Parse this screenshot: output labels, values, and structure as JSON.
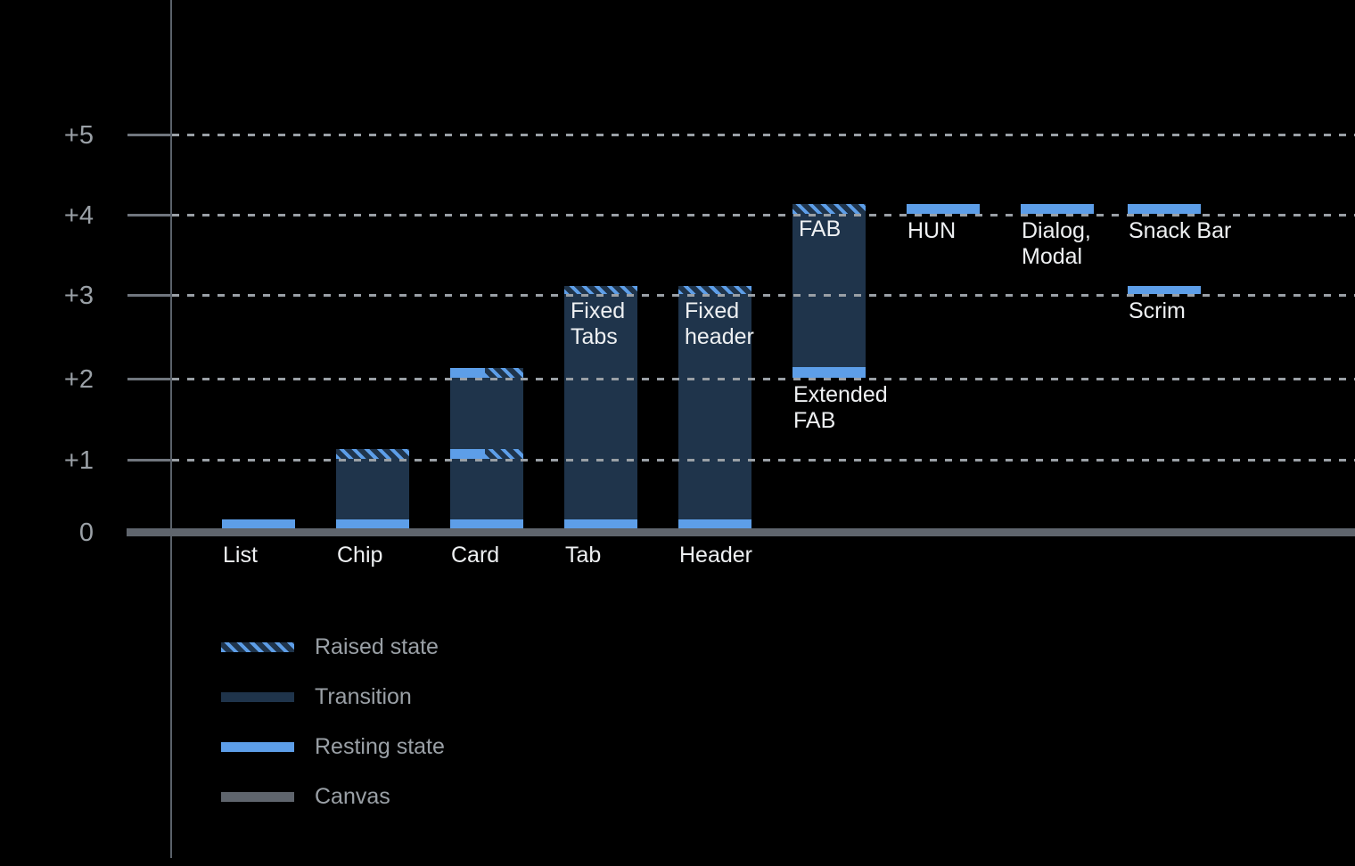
{
  "colors": {
    "background": "#000000",
    "resting_state": "#5d9ee8",
    "transition": "#1f344b",
    "canvas": "#5f656d",
    "gridline": "#9aa0a6",
    "axis_line": "#5a616a",
    "bar_label_text": "#eef0f2",
    "muted_text": "#9aa0a6"
  },
  "axis": {
    "levels": [
      {
        "text": "+5",
        "level": 5
      },
      {
        "text": "+4",
        "level": 4
      },
      {
        "text": "+3",
        "level": 3
      },
      {
        "text": "+2",
        "level": 2
      },
      {
        "text": "+1",
        "level": 1
      },
      {
        "text": "0",
        "level": 0
      }
    ]
  },
  "legend": {
    "items": [
      {
        "kind": "raised",
        "label": "Raised state"
      },
      {
        "kind": "transition",
        "label": "Transition"
      },
      {
        "kind": "resting",
        "label": "Resting state"
      },
      {
        "kind": "canvas",
        "label": "Canvas"
      }
    ]
  },
  "chart_data": {
    "type": "bar",
    "title": "",
    "xlabel": "",
    "ylabel": "",
    "ylim": [
      0,
      5
    ],
    "ytick_labels": [
      "0",
      "+1",
      "+2",
      "+3",
      "+4",
      "+5"
    ],
    "grid": "dotted horizontal lines at each elevation level",
    "legend_position": "bottom-left",
    "categories": [
      "List",
      "Chip",
      "Card",
      "Tab",
      "Header",
      "Extended FAB",
      "HUN",
      "Dialog, Modal",
      "Snack Bar",
      "Scrim"
    ],
    "resting_elevations": [
      0,
      0,
      0,
      0,
      0,
      2,
      4,
      4,
      4,
      3
    ],
    "raised_elevations": [
      0,
      1,
      2,
      3,
      3,
      4,
      4,
      4,
      4,
      3
    ],
    "bars": [
      {
        "name": "list",
        "label": "List",
        "label_placement": "below-canvas",
        "segments": [
          {
            "kind": "resting",
            "from": 0,
            "to": 0.13
          }
        ]
      },
      {
        "name": "chip",
        "label": "Chip",
        "label_placement": "below-canvas",
        "segments": [
          {
            "kind": "resting",
            "from": 0,
            "to": 0.13
          },
          {
            "kind": "transition",
            "from": 0.13,
            "to": 1.0
          },
          {
            "kind": "raised",
            "from": 1.0,
            "to": 1.12
          }
        ]
      },
      {
        "name": "card",
        "label": "Card",
        "label_placement": "below-canvas",
        "segments": [
          {
            "kind": "resting",
            "from": 0,
            "to": 0.13
          },
          {
            "kind": "transition",
            "from": 0.13,
            "to": 1.0
          },
          {
            "kind": "split",
            "from": 1.0,
            "to": 1.12
          },
          {
            "kind": "transition",
            "from": 1.12,
            "to": 2.0
          },
          {
            "kind": "split",
            "from": 2.0,
            "to": 2.12
          }
        ]
      },
      {
        "name": "tab",
        "label": "Tab",
        "label_placement": "below-canvas",
        "inner_label": "Fixed\nTabs",
        "segments": [
          {
            "kind": "resting",
            "from": 0,
            "to": 0.13
          },
          {
            "kind": "transition",
            "from": 0.13,
            "to": 3.0
          },
          {
            "kind": "raised",
            "from": 3.0,
            "to": 3.1
          }
        ]
      },
      {
        "name": "header",
        "label": "Header",
        "label_placement": "below-canvas",
        "inner_label": "Fixed\nheader",
        "segments": [
          {
            "kind": "resting",
            "from": 0,
            "to": 0.13
          },
          {
            "kind": "transition",
            "from": 0.13,
            "to": 3.0
          },
          {
            "kind": "raised",
            "from": 3.0,
            "to": 3.1
          }
        ]
      },
      {
        "name": "extended-fab",
        "label": "Extended\nFAB",
        "label_placement": "below-bar",
        "inner_label": "FAB",
        "segments": [
          {
            "kind": "resting",
            "from": 2.0,
            "to": 2.13
          },
          {
            "kind": "transition",
            "from": 2.13,
            "to": 4.0
          },
          {
            "kind": "raised",
            "from": 4.0,
            "to": 4.12
          }
        ]
      },
      {
        "name": "hun",
        "label": "HUN",
        "label_placement": "below-bar",
        "segments": [
          {
            "kind": "resting",
            "from": 4.0,
            "to": 4.12
          }
        ]
      },
      {
        "name": "dialog-modal",
        "label": "Dialog,\nModal",
        "label_placement": "below-bar",
        "segments": [
          {
            "kind": "resting",
            "from": 4.0,
            "to": 4.12
          }
        ]
      },
      {
        "name": "snack-bar",
        "label": "Snack Bar",
        "label_placement": "below-bar",
        "segments": [
          {
            "kind": "resting",
            "from": 4.0,
            "to": 4.12
          }
        ]
      },
      {
        "name": "scrim",
        "label": "Scrim",
        "label_placement": "below-bar",
        "segments": [
          {
            "kind": "resting",
            "from": 3.0,
            "to": 3.1
          }
        ]
      }
    ]
  }
}
